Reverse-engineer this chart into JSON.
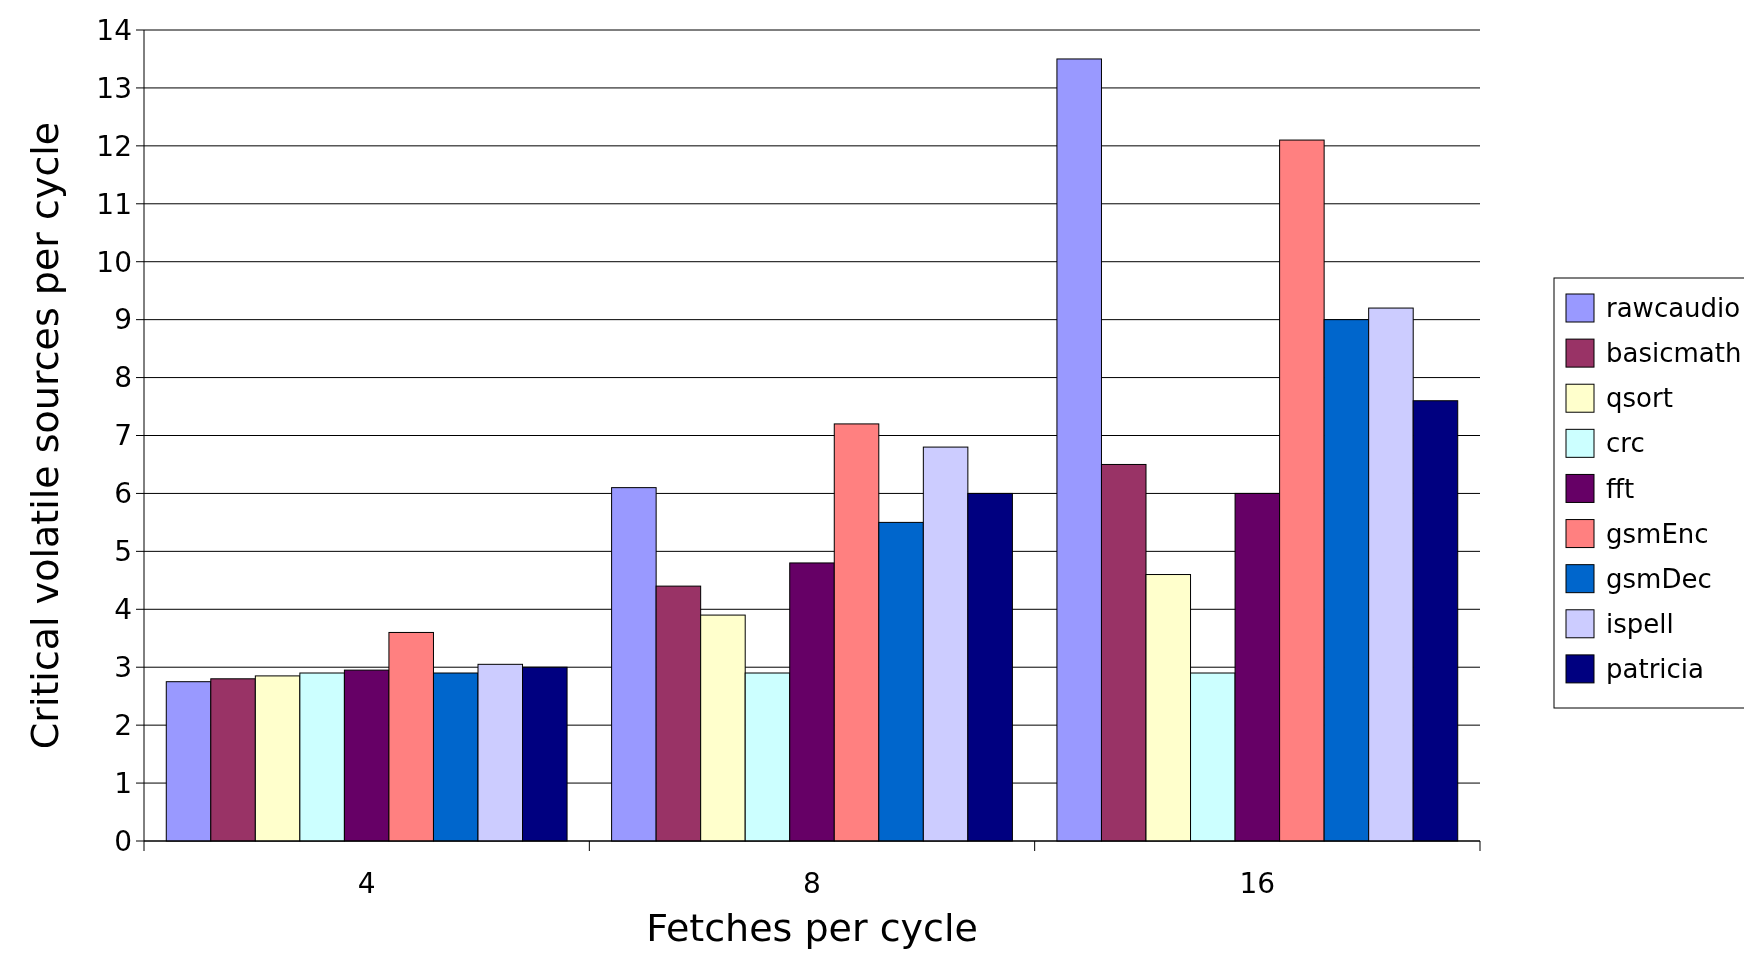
{
  "chart_data": {
    "type": "bar",
    "xlabel": "Fetches per cycle",
    "ylabel": "Critical volatile sources per cycle",
    "categories": [
      "4",
      "8",
      "16"
    ],
    "series": [
      {
        "name": "rawcaudio",
        "color": "#9999ff",
        "values": [
          2.75,
          6.1,
          13.5
        ]
      },
      {
        "name": "basicmath",
        "color": "#993366",
        "values": [
          2.8,
          4.4,
          6.5
        ]
      },
      {
        "name": "qsort",
        "color": "#ffffcc",
        "values": [
          2.85,
          3.9,
          4.6
        ]
      },
      {
        "name": "crc",
        "color": "#ccffff",
        "values": [
          2.9,
          2.9,
          2.9
        ]
      },
      {
        "name": "fft",
        "color": "#660066",
        "values": [
          2.95,
          4.8,
          6.0
        ]
      },
      {
        "name": "gsmEnc",
        "color": "#ff8080",
        "values": [
          3.6,
          7.2,
          12.1
        ]
      },
      {
        "name": "gsmDec",
        "color": "#0066cc",
        "values": [
          2.9,
          5.5,
          9.0
        ]
      },
      {
        "name": "ispell",
        "color": "#ccccff",
        "values": [
          3.05,
          6.8,
          9.2
        ]
      },
      {
        "name": "patricia",
        "color": "#000080",
        "values": [
          3.0,
          6.0,
          7.6
        ]
      }
    ],
    "ylim": [
      0,
      14
    ],
    "yticks": [
      0,
      1,
      2,
      3,
      4,
      5,
      6,
      7,
      8,
      9,
      10,
      11,
      12,
      13,
      14
    ],
    "grid": "y",
    "legend": "right"
  }
}
